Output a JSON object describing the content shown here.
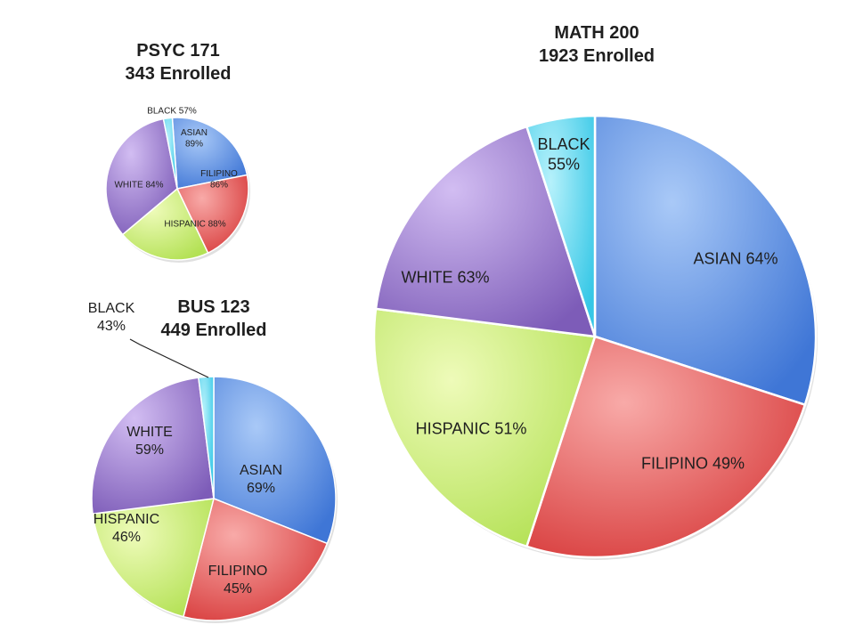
{
  "chart_data": [
    {
      "type": "pie",
      "title_line1": "PSYC 171",
      "title_line2": "343 Enrolled",
      "categories": [
        "ASIAN",
        "FILIPINO",
        "HISPANIC",
        "WHITE",
        "BLACK"
      ],
      "labels": [
        "ASIAN 89%",
        "FILIPINO 86%",
        "HISPANIC 88%",
        "WHITE 84%",
        "BLACK 57%"
      ],
      "values": [
        89,
        86,
        88,
        84,
        57
      ],
      "colors": [
        "#5b8fe0",
        "#e85c5c",
        "#c9ec7a",
        "#9f7dd3",
        "#5cd6ef"
      ]
    },
    {
      "type": "pie",
      "title_line1": "MATH 200",
      "title_line2": "1923 Enrolled",
      "categories": [
        "ASIAN",
        "FILIPINO",
        "HISPANIC",
        "WHITE",
        "BLACK"
      ],
      "labels": [
        "ASIAN 64%",
        "FILIPINO 49%",
        "HISPANIC 51%",
        "WHITE 63%",
        "BLACK 55%"
      ],
      "values": [
        64,
        49,
        51,
        63,
        55
      ],
      "colors": [
        "#5b8fe0",
        "#e85c5c",
        "#c9ec7a",
        "#9f7dd3",
        "#5cd6ef"
      ]
    },
    {
      "type": "pie",
      "title_line1": "BUS 123",
      "title_line2": "449 Enrolled",
      "categories": [
        "ASIAN",
        "FILIPINO",
        "HISPANIC",
        "WHITE",
        "BLACK"
      ],
      "labels": [
        "ASIAN 69%",
        "FILIPINO 45%",
        "HISPANIC 46%",
        "WHITE 59%",
        "BLACK 43%"
      ],
      "values": [
        69,
        45,
        46,
        59,
        43
      ],
      "colors": [
        "#5b8fe0",
        "#e85c5c",
        "#c9ec7a",
        "#9f7dd3",
        "#5cd6ef"
      ]
    }
  ]
}
